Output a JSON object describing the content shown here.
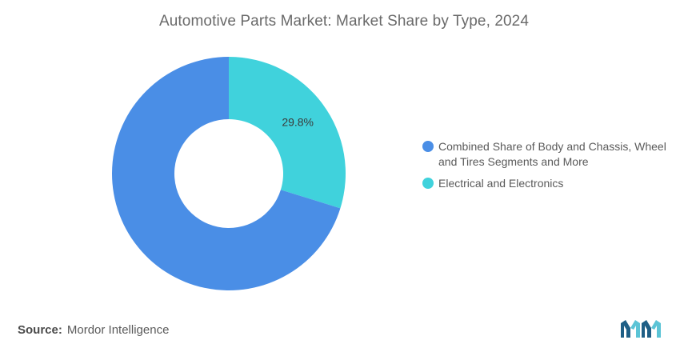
{
  "chart_data": {
    "type": "pie",
    "title": "Automotive Parts Market: Market Share by Type, 2024",
    "donut": true,
    "categories": [
      "Combined Share of Body and Chassis, Wheel and Tires Segments and More",
      "Electrical and Electronics"
    ],
    "values": [
      70.2,
      29.8
    ],
    "colors": [
      "#4a8ee6",
      "#40d2dc"
    ],
    "data_labels": [
      "",
      "29.8%"
    ],
    "legend_position": "right"
  },
  "source": {
    "label": "Source:",
    "text": "Mordor Intelligence"
  },
  "logo": {
    "icon": "mordor-intelligence-logo",
    "colors": [
      "#1f5f86",
      "#5bc4d6"
    ]
  }
}
